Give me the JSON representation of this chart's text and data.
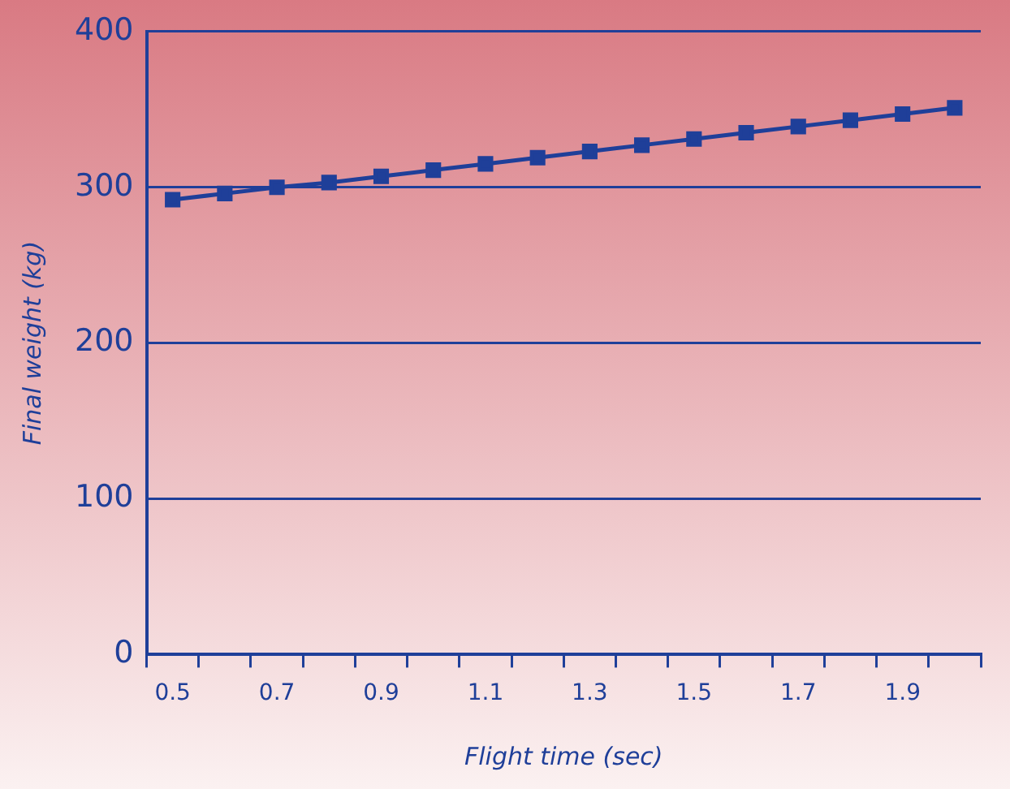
{
  "chart_data": {
    "type": "line",
    "xlabel": "Flight time (sec)",
    "ylabel": "Final weight (kg)",
    "categories": [
      "0.5",
      null,
      "0.7",
      null,
      "0.9",
      null,
      "1.1",
      null,
      "1.3",
      null,
      "1.5",
      null,
      "1.7",
      null,
      "1.9",
      null
    ],
    "series": [
      {
        "color": "#1f3f99",
        "values": [
          292,
          296,
          300,
          303,
          307,
          311,
          315,
          319,
          323,
          327,
          331,
          335,
          339,
          343,
          347,
          351
        ]
      }
    ],
    "ylim": [
      0,
      400
    ],
    "yticks": [
      0,
      100,
      200,
      300,
      400
    ],
    "grid": "y",
    "legend": false,
    "marker": "square",
    "line_style": "solid"
  }
}
